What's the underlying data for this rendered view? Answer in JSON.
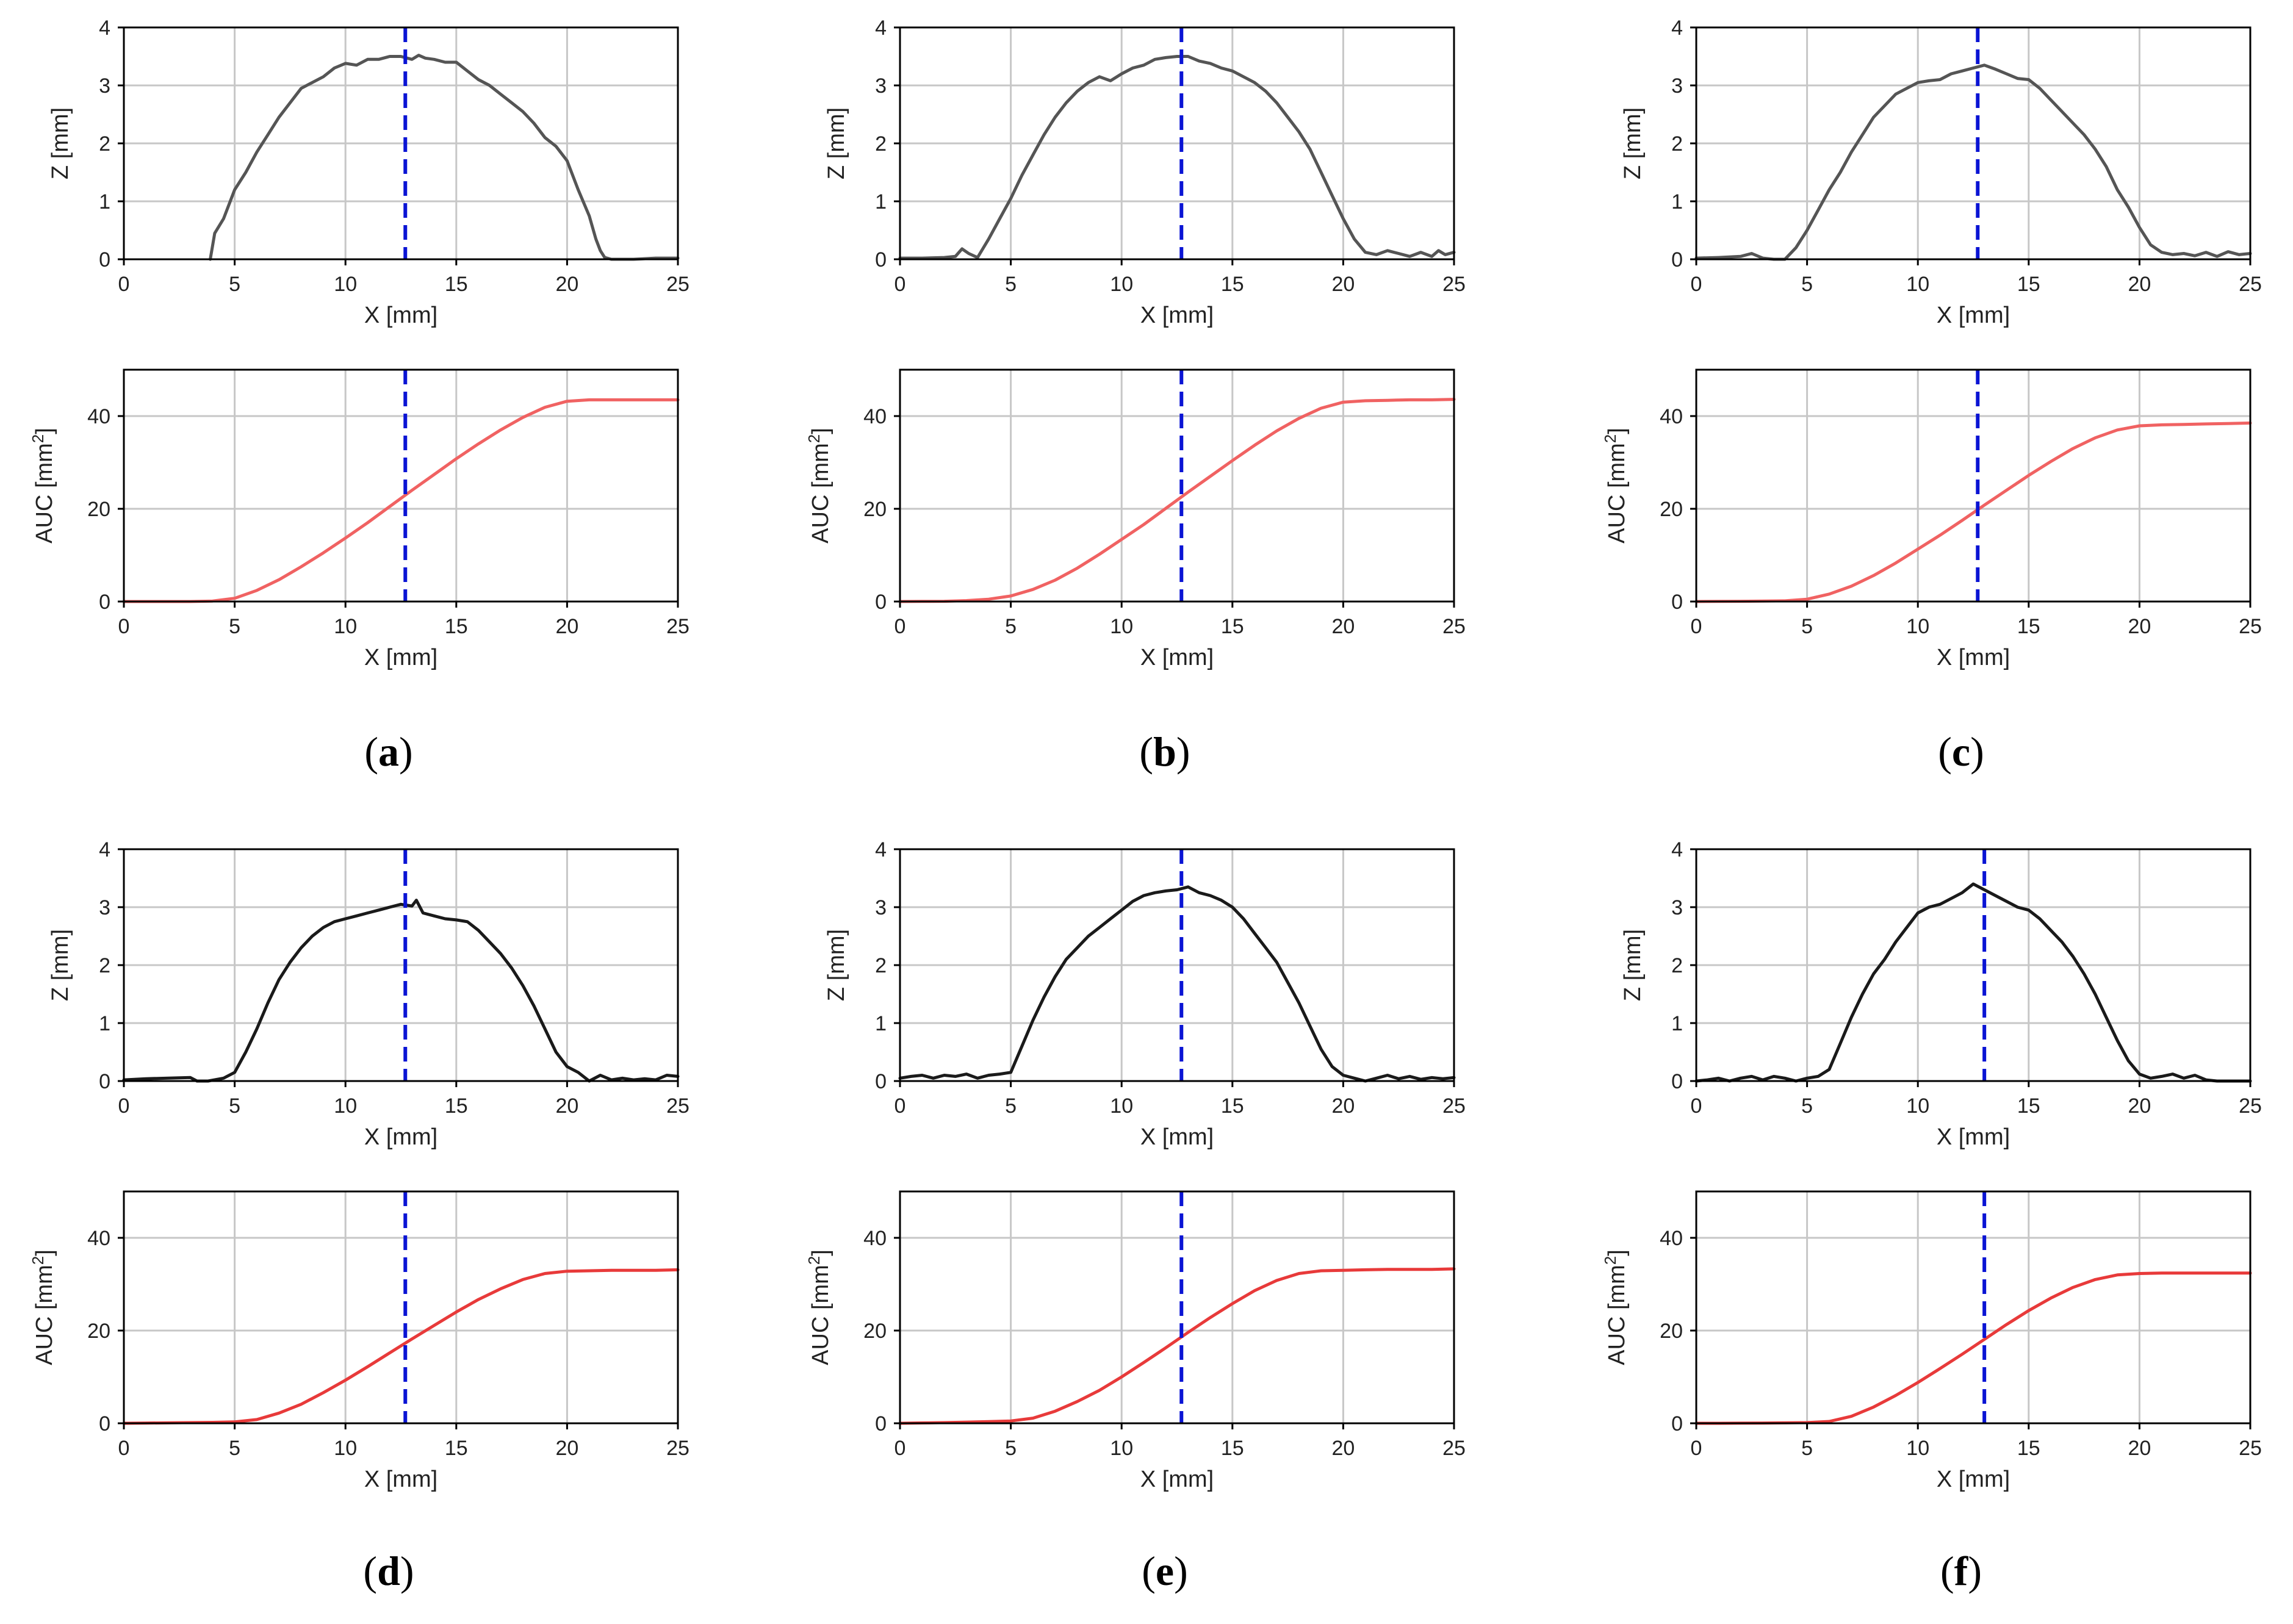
{
  "colors": {
    "profile_light": "#555555",
    "profile_dark": "#1a1a1a",
    "auc_light": "#f06262",
    "auc_dark": "#e83a3a",
    "center_line": "#0a14d4",
    "grid": "#c7c7c7"
  },
  "axes": {
    "profile": {
      "xlabel": "X [mm]",
      "ylabel": "Z [mm]",
      "xlim": [
        0,
        25
      ],
      "ylim": [
        0,
        4
      ],
      "xticks": [
        0,
        5,
        10,
        15,
        20,
        25
      ],
      "yticks": [
        0,
        1,
        2,
        3,
        4
      ]
    },
    "auc": {
      "xlabel": "X [mm]",
      "ylabel": "AUC [mm",
      "ylabel_sup": "2",
      "ylabel_end": "]",
      "xlim": [
        0,
        25
      ],
      "ylim": [
        0,
        50
      ],
      "xticks": [
        0,
        5,
        10,
        15,
        20,
        25
      ],
      "yticks": [
        0,
        20,
        40
      ]
    }
  },
  "chart_data": [
    {
      "panel": "a",
      "caption_open": "(",
      "caption_letter": "a",
      "caption_close": ")",
      "profile": {
        "type": "line",
        "xlabel": "X [mm]",
        "ylabel": "Z [mm]",
        "xlim": [
          0,
          25
        ],
        "ylim": [
          0,
          4
        ],
        "grid": true,
        "style": "light",
        "center_x": 12.7,
        "x": [
          3.9,
          4.1,
          4.5,
          5.0,
          5.5,
          6.0,
          6.5,
          7.0,
          7.5,
          8.0,
          8.5,
          9.0,
          9.5,
          10.0,
          10.5,
          11.0,
          11.5,
          12.0,
          12.5,
          13.0,
          13.3,
          13.6,
          14.0,
          14.5,
          15.0,
          15.5,
          16.0,
          16.5,
          17.0,
          17.5,
          18.0,
          18.5,
          19.0,
          19.5,
          20.0,
          20.5,
          21.0,
          21.3,
          21.5,
          21.7,
          22.0,
          23.0,
          24.0,
          25.0
        ],
        "values": [
          0.0,
          0.45,
          0.7,
          1.2,
          1.5,
          1.85,
          2.15,
          2.45,
          2.7,
          2.95,
          3.05,
          3.15,
          3.3,
          3.38,
          3.35,
          3.45,
          3.45,
          3.5,
          3.5,
          3.45,
          3.52,
          3.47,
          3.45,
          3.4,
          3.4,
          3.25,
          3.1,
          3.0,
          2.85,
          2.7,
          2.55,
          2.35,
          2.1,
          1.95,
          1.7,
          1.2,
          0.75,
          0.35,
          0.15,
          0.03,
          0.0,
          0.0,
          0.02,
          0.02
        ]
      },
      "auc": {
        "type": "line",
        "xlabel": "X [mm]",
        "ylabel": "AUC [mm²]",
        "xlim": [
          0,
          25
        ],
        "ylim": [
          0,
          50
        ],
        "grid": true,
        "style": "light",
        "center_x": 12.7,
        "x": [
          0,
          1,
          2,
          3,
          4,
          5,
          6,
          7,
          8,
          9,
          10,
          11,
          12,
          13,
          14,
          15,
          16,
          17,
          18,
          19,
          20,
          21,
          22,
          23,
          24,
          25
        ],
        "values": [
          0,
          0,
          0,
          0,
          0.1,
          0.7,
          2.4,
          4.7,
          7.5,
          10.5,
          13.7,
          17.0,
          20.5,
          24.0,
          27.4,
          30.8,
          34.0,
          37.0,
          39.7,
          41.9,
          43.2,
          43.5,
          43.5,
          43.5,
          43.5,
          43.5
        ]
      }
    },
    {
      "panel": "b",
      "caption_open": "(",
      "caption_letter": "b",
      "caption_close": ")",
      "profile": {
        "type": "line",
        "xlabel": "X [mm]",
        "ylabel": "Z [mm]",
        "xlim": [
          0,
          25
        ],
        "ylim": [
          0,
          4
        ],
        "grid": true,
        "style": "light",
        "center_x": 12.7,
        "x": [
          0.0,
          1.0,
          2.0,
          2.5,
          2.8,
          3.1,
          3.5,
          4.0,
          4.5,
          5.0,
          5.5,
          6.0,
          6.5,
          7.0,
          7.5,
          8.0,
          8.5,
          9.0,
          9.5,
          10.0,
          10.5,
          11.0,
          11.5,
          12.0,
          12.5,
          13.0,
          13.5,
          14.0,
          14.5,
          15.0,
          15.5,
          16.0,
          16.5,
          17.0,
          17.5,
          18.0,
          18.5,
          19.0,
          19.5,
          20.0,
          20.5,
          21.0,
          21.5,
          22.0,
          22.5,
          23.0,
          23.5,
          24.0,
          24.3,
          24.6,
          25.0
        ],
        "values": [
          0.02,
          0.02,
          0.03,
          0.05,
          0.18,
          0.1,
          0.03,
          0.35,
          0.7,
          1.05,
          1.45,
          1.8,
          2.15,
          2.45,
          2.7,
          2.9,
          3.05,
          3.15,
          3.08,
          3.2,
          3.3,
          3.35,
          3.45,
          3.48,
          3.5,
          3.5,
          3.42,
          3.38,
          3.3,
          3.25,
          3.15,
          3.05,
          2.9,
          2.7,
          2.45,
          2.2,
          1.9,
          1.5,
          1.1,
          0.7,
          0.35,
          0.12,
          0.08,
          0.15,
          0.1,
          0.05,
          0.12,
          0.05,
          0.15,
          0.08,
          0.12
        ]
      },
      "auc": {
        "type": "line",
        "xlabel": "X [mm]",
        "ylabel": "AUC [mm²]",
        "xlim": [
          0,
          25
        ],
        "ylim": [
          0,
          50
        ],
        "grid": true,
        "style": "light",
        "center_x": 12.7,
        "x": [
          0,
          1,
          2,
          3,
          4,
          5,
          6,
          7,
          8,
          9,
          10,
          11,
          12,
          13,
          14,
          15,
          16,
          17,
          18,
          19,
          20,
          21,
          22,
          23,
          24,
          25
        ],
        "values": [
          0,
          0.02,
          0.05,
          0.2,
          0.5,
          1.2,
          2.6,
          4.6,
          7.2,
          10.2,
          13.4,
          16.6,
          20.1,
          23.6,
          27.0,
          30.4,
          33.7,
          36.8,
          39.5,
          41.7,
          43.0,
          43.3,
          43.4,
          43.5,
          43.5,
          43.6
        ]
      }
    },
    {
      "panel": "c",
      "caption_open": "(",
      "caption_letter": "c",
      "caption_close": ")",
      "profile": {
        "type": "line",
        "xlabel": "X [mm]",
        "ylabel": "Z [mm]",
        "xlim": [
          0,
          25
        ],
        "ylim": [
          0,
          4
        ],
        "grid": true,
        "style": "light",
        "center_x": 12.7,
        "x": [
          0.0,
          1.0,
          2.0,
          2.5,
          3.0,
          3.5,
          4.0,
          4.5,
          5.0,
          5.5,
          6.0,
          6.5,
          7.0,
          7.5,
          8.0,
          8.5,
          9.0,
          9.5,
          10.0,
          10.5,
          11.0,
          11.5,
          12.0,
          12.5,
          13.0,
          13.5,
          14.0,
          14.5,
          15.0,
          15.5,
          16.0,
          16.5,
          17.0,
          17.5,
          18.0,
          18.5,
          19.0,
          19.5,
          20.0,
          20.5,
          21.0,
          21.5,
          22.0,
          22.5,
          23.0,
          23.5,
          24.0,
          24.5,
          25.0
        ],
        "values": [
          0.02,
          0.03,
          0.05,
          0.1,
          0.02,
          0.0,
          0.0,
          0.2,
          0.5,
          0.85,
          1.2,
          1.5,
          1.85,
          2.15,
          2.45,
          2.65,
          2.85,
          2.95,
          3.05,
          3.08,
          3.1,
          3.2,
          3.25,
          3.3,
          3.35,
          3.28,
          3.2,
          3.12,
          3.1,
          2.95,
          2.75,
          2.55,
          2.35,
          2.15,
          1.9,
          1.6,
          1.2,
          0.9,
          0.55,
          0.25,
          0.12,
          0.08,
          0.1,
          0.06,
          0.12,
          0.05,
          0.13,
          0.08,
          0.1
        ]
      },
      "auc": {
        "type": "line",
        "xlabel": "X [mm]",
        "ylabel": "AUC [mm²]",
        "xlim": [
          0,
          25
        ],
        "ylim": [
          0,
          50
        ],
        "grid": true,
        "style": "light",
        "center_x": 12.7,
        "x": [
          0,
          1,
          2,
          3,
          4,
          5,
          6,
          7,
          8,
          9,
          10,
          11,
          12,
          13,
          14,
          15,
          16,
          17,
          18,
          19,
          20,
          21,
          22,
          23,
          24,
          25
        ],
        "values": [
          0,
          0.02,
          0.05,
          0.1,
          0.15,
          0.5,
          1.6,
          3.3,
          5.6,
          8.3,
          11.3,
          14.3,
          17.5,
          20.8,
          24.0,
          27.2,
          30.2,
          33.0,
          35.3,
          37.0,
          37.9,
          38.1,
          38.2,
          38.3,
          38.4,
          38.5
        ]
      }
    },
    {
      "panel": "d",
      "caption_open": "(",
      "caption_letter": "d",
      "caption_close": ")",
      "profile": {
        "type": "line",
        "xlabel": "X [mm]",
        "ylabel": "Z [mm]",
        "xlim": [
          0,
          25
        ],
        "ylim": [
          0,
          4
        ],
        "grid": true,
        "style": "dark",
        "center_x": 12.7,
        "x": [
          0.0,
          1.0,
          2.0,
          3.0,
          3.3,
          3.8,
          4.5,
          5.0,
          5.5,
          6.0,
          6.5,
          7.0,
          7.5,
          8.0,
          8.5,
          9.0,
          9.5,
          10.0,
          10.5,
          11.0,
          11.5,
          12.0,
          12.5,
          13.0,
          13.2,
          13.5,
          14.0,
          14.5,
          15.0,
          15.5,
          16.0,
          16.5,
          17.0,
          17.5,
          18.0,
          18.5,
          19.0,
          19.5,
          20.0,
          20.5,
          21.0,
          21.5,
          22.0,
          22.5,
          23.0,
          23.5,
          24.0,
          24.5,
          25.0
        ],
        "values": [
          0.02,
          0.04,
          0.05,
          0.06,
          0.0,
          0.0,
          0.05,
          0.15,
          0.5,
          0.9,
          1.35,
          1.75,
          2.05,
          2.3,
          2.5,
          2.65,
          2.75,
          2.8,
          2.85,
          2.9,
          2.95,
          3.0,
          3.05,
          3.02,
          3.12,
          2.9,
          2.85,
          2.8,
          2.78,
          2.75,
          2.6,
          2.4,
          2.2,
          1.95,
          1.65,
          1.3,
          0.9,
          0.5,
          0.25,
          0.15,
          0.0,
          0.1,
          0.02,
          0.05,
          0.02,
          0.04,
          0.02,
          0.1,
          0.08
        ]
      },
      "auc": {
        "type": "line",
        "xlabel": "X [mm]",
        "ylabel": "AUC [mm²]",
        "xlim": [
          0,
          25
        ],
        "ylim": [
          0,
          50
        ],
        "grid": true,
        "style": "dark",
        "center_x": 12.7,
        "x": [
          0,
          1,
          2,
          3,
          4,
          5,
          6,
          7,
          8,
          9,
          10,
          11,
          12,
          13,
          14,
          15,
          16,
          17,
          18,
          19,
          20,
          21,
          22,
          23,
          24,
          25
        ],
        "values": [
          0,
          0.05,
          0.1,
          0.15,
          0.2,
          0.3,
          0.8,
          2.2,
          4.1,
          6.6,
          9.3,
          12.2,
          15.2,
          18.2,
          21.1,
          24.0,
          26.7,
          29.0,
          31.0,
          32.3,
          32.8,
          32.9,
          33.0,
          33.0,
          33.0,
          33.1
        ]
      }
    },
    {
      "panel": "e",
      "caption_open": "(",
      "caption_letter": "e",
      "caption_close": ")",
      "profile": {
        "type": "line",
        "xlabel": "X [mm]",
        "ylabel": "Z [mm]",
        "xlim": [
          0,
          25
        ],
        "ylim": [
          0,
          4
        ],
        "grid": true,
        "style": "dark",
        "center_x": 12.7,
        "x": [
          0.0,
          0.5,
          1.0,
          1.5,
          2.0,
          2.5,
          3.0,
          3.5,
          4.0,
          4.5,
          5.0,
          5.5,
          6.0,
          6.5,
          7.0,
          7.5,
          8.0,
          8.5,
          9.0,
          9.5,
          10.0,
          10.5,
          11.0,
          11.5,
          12.0,
          12.5,
          13.0,
          13.5,
          14.0,
          14.5,
          15.0,
          15.5,
          16.0,
          16.5,
          17.0,
          17.5,
          18.0,
          18.5,
          19.0,
          19.5,
          20.0,
          20.5,
          21.0,
          21.5,
          22.0,
          22.5,
          23.0,
          23.5,
          24.0,
          24.5,
          25.0
        ],
        "values": [
          0.05,
          0.08,
          0.1,
          0.05,
          0.1,
          0.08,
          0.12,
          0.05,
          0.1,
          0.12,
          0.15,
          0.6,
          1.05,
          1.45,
          1.8,
          2.1,
          2.3,
          2.5,
          2.65,
          2.8,
          2.95,
          3.1,
          3.2,
          3.25,
          3.28,
          3.3,
          3.35,
          3.25,
          3.2,
          3.12,
          3.0,
          2.8,
          2.55,
          2.3,
          2.05,
          1.7,
          1.35,
          0.95,
          0.55,
          0.25,
          0.1,
          0.05,
          0.0,
          0.05,
          0.1,
          0.04,
          0.08,
          0.03,
          0.06,
          0.04,
          0.06
        ]
      },
      "auc": {
        "type": "line",
        "xlabel": "X [mm]",
        "ylabel": "AUC [mm²]",
        "xlim": [
          0,
          25
        ],
        "ylim": [
          0,
          50
        ],
        "grid": true,
        "style": "dark",
        "center_x": 12.7,
        "x": [
          0,
          1,
          2,
          3,
          4,
          5,
          6,
          7,
          8,
          9,
          10,
          11,
          12,
          13,
          14,
          15,
          16,
          17,
          18,
          19,
          20,
          21,
          22,
          23,
          24,
          25
        ],
        "values": [
          0,
          0.08,
          0.15,
          0.25,
          0.35,
          0.5,
          1.1,
          2.6,
          4.7,
          7.1,
          10.0,
          13.1,
          16.3,
          19.6,
          22.8,
          25.8,
          28.6,
          30.8,
          32.3,
          32.9,
          33.0,
          33.1,
          33.2,
          33.2,
          33.2,
          33.3
        ]
      }
    },
    {
      "panel": "f",
      "caption_open": "(",
      "caption_letter": "f",
      "caption_close": ")",
      "profile": {
        "type": "line",
        "xlabel": "X [mm]",
        "ylabel": "Z [mm]",
        "xlim": [
          0,
          25
        ],
        "ylim": [
          0,
          4
        ],
        "grid": true,
        "style": "dark",
        "center_x": 13.0,
        "x": [
          0.0,
          0.5,
          1.0,
          1.5,
          2.0,
          2.5,
          3.0,
          3.5,
          4.0,
          4.5,
          5.0,
          5.5,
          6.0,
          6.5,
          7.0,
          7.5,
          8.0,
          8.5,
          9.0,
          9.5,
          10.0,
          10.5,
          11.0,
          11.5,
          12.0,
          12.5,
          13.0,
          13.5,
          14.0,
          14.5,
          15.0,
          15.5,
          16.0,
          16.5,
          17.0,
          17.5,
          18.0,
          18.5,
          19.0,
          19.5,
          20.0,
          20.5,
          21.0,
          21.5,
          22.0,
          22.5,
          23.0,
          23.5,
          24.0,
          24.5,
          25.0
        ],
        "values": [
          0.0,
          0.02,
          0.05,
          0.0,
          0.05,
          0.08,
          0.02,
          0.08,
          0.05,
          0.0,
          0.05,
          0.08,
          0.2,
          0.65,
          1.1,
          1.5,
          1.85,
          2.1,
          2.4,
          2.65,
          2.9,
          3.0,
          3.05,
          3.15,
          3.25,
          3.4,
          3.3,
          3.2,
          3.1,
          3.0,
          2.95,
          2.8,
          2.6,
          2.4,
          2.15,
          1.85,
          1.5,
          1.1,
          0.7,
          0.35,
          0.12,
          0.05,
          0.08,
          0.12,
          0.05,
          0.1,
          0.02,
          0.0,
          0.0,
          0.0,
          0.0
        ]
      },
      "auc": {
        "type": "line",
        "xlabel": "X [mm]",
        "ylabel": "AUC [mm²]",
        "xlim": [
          0,
          25
        ],
        "ylim": [
          0,
          50
        ],
        "grid": true,
        "style": "dark",
        "center_x": 13.0,
        "x": [
          0,
          1,
          2,
          3,
          4,
          5,
          6,
          7,
          8,
          9,
          10,
          11,
          12,
          13,
          14,
          15,
          16,
          17,
          18,
          19,
          20,
          21,
          22,
          23,
          24,
          25
        ],
        "values": [
          0,
          0,
          0.02,
          0.05,
          0.1,
          0.15,
          0.4,
          1.5,
          3.5,
          6.0,
          8.8,
          11.8,
          14.9,
          18.1,
          21.3,
          24.3,
          27.0,
          29.3,
          31.0,
          32.0,
          32.3,
          32.4,
          32.4,
          32.4,
          32.4,
          32.4
        ]
      }
    }
  ]
}
